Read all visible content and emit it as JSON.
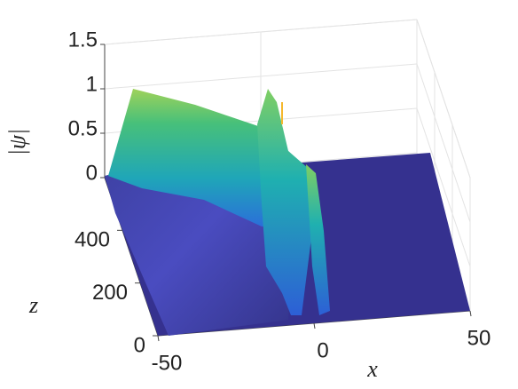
{
  "chart_data": {
    "type": "surface3d",
    "xlabel": "x",
    "ylabel": "z",
    "zlabel": "|ψ|",
    "xlim": [
      -50,
      50
    ],
    "xticks": [
      -50,
      0,
      50
    ],
    "ylim": [
      0,
      600
    ],
    "yticks": [
      0,
      200,
      400
    ],
    "zlim": [
      0,
      1.5
    ],
    "zticks": [
      0,
      0.5,
      1,
      1.5
    ],
    "grid": true
  }
}
